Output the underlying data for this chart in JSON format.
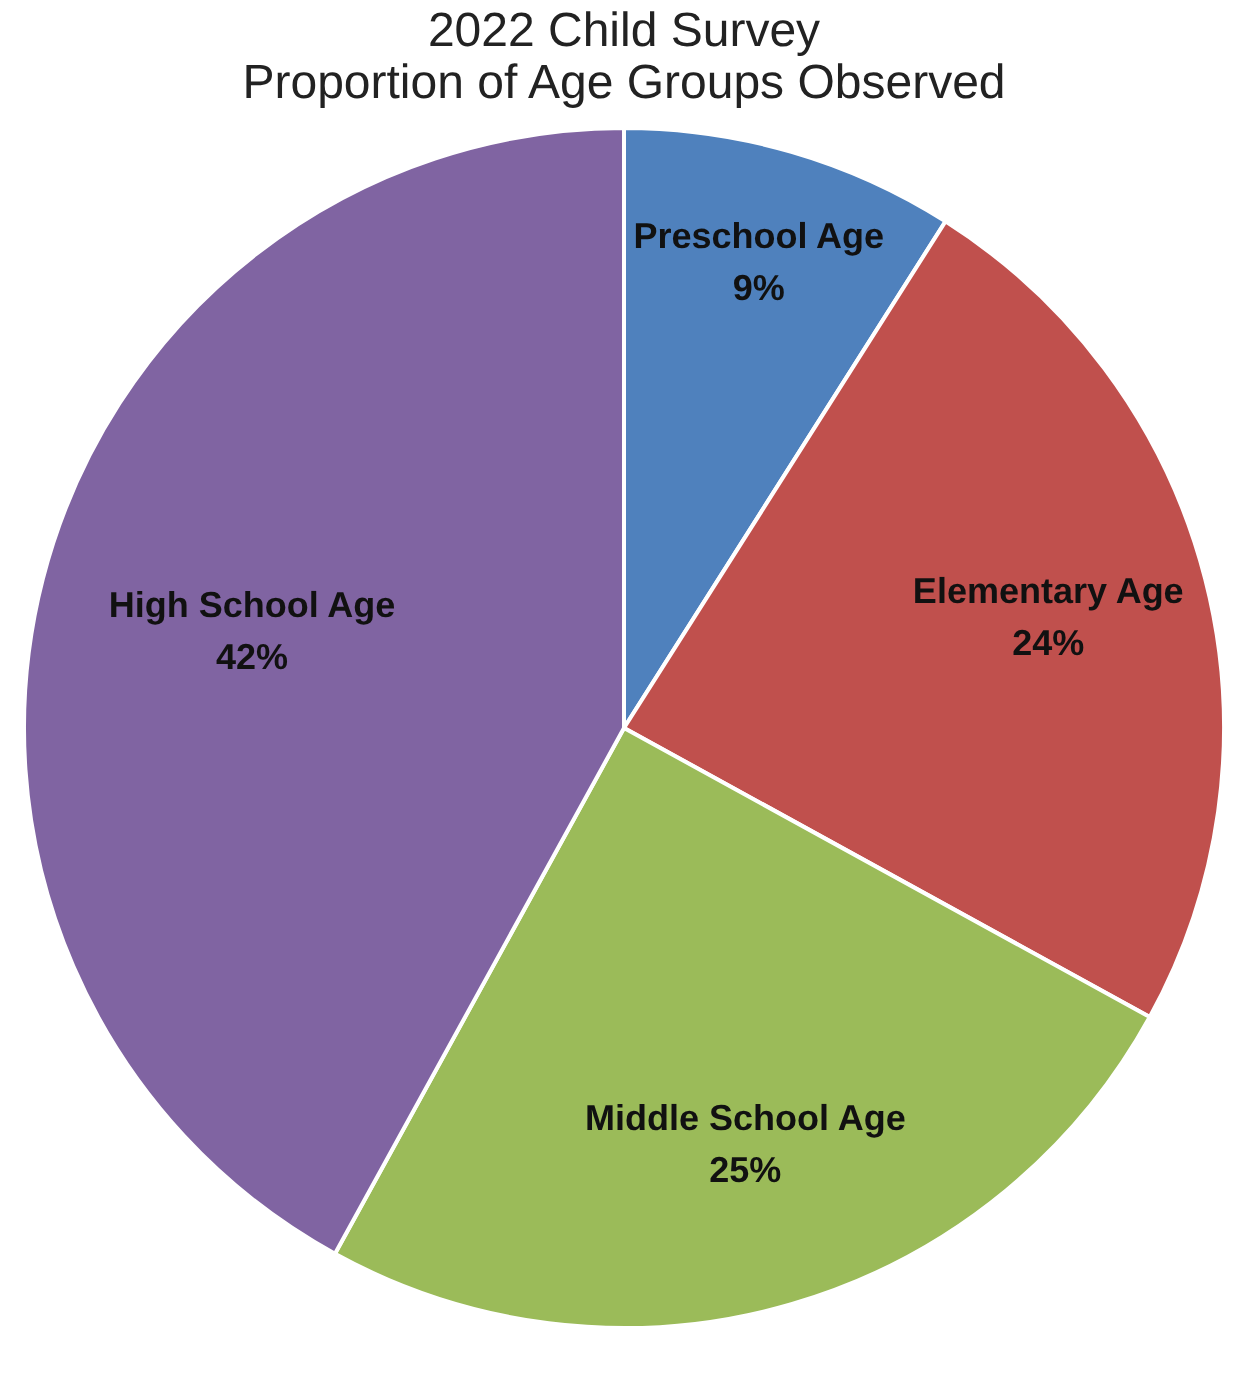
{
  "chart_data": {
    "type": "pie",
    "title": [
      "2022 Child Survey",
      "Proportion of Age Groups Observed"
    ],
    "categories": [
      "Preschool Age",
      "Elementary Age",
      "Middle School Age",
      "High School Age"
    ],
    "values": [
      9,
      24,
      25,
      42
    ],
    "value_labels": [
      "9%",
      "24%",
      "25%",
      "42%"
    ],
    "colors": [
      "#4f81bd",
      "#c0504d",
      "#9bbb59",
      "#8064a2"
    ],
    "legend": false
  }
}
